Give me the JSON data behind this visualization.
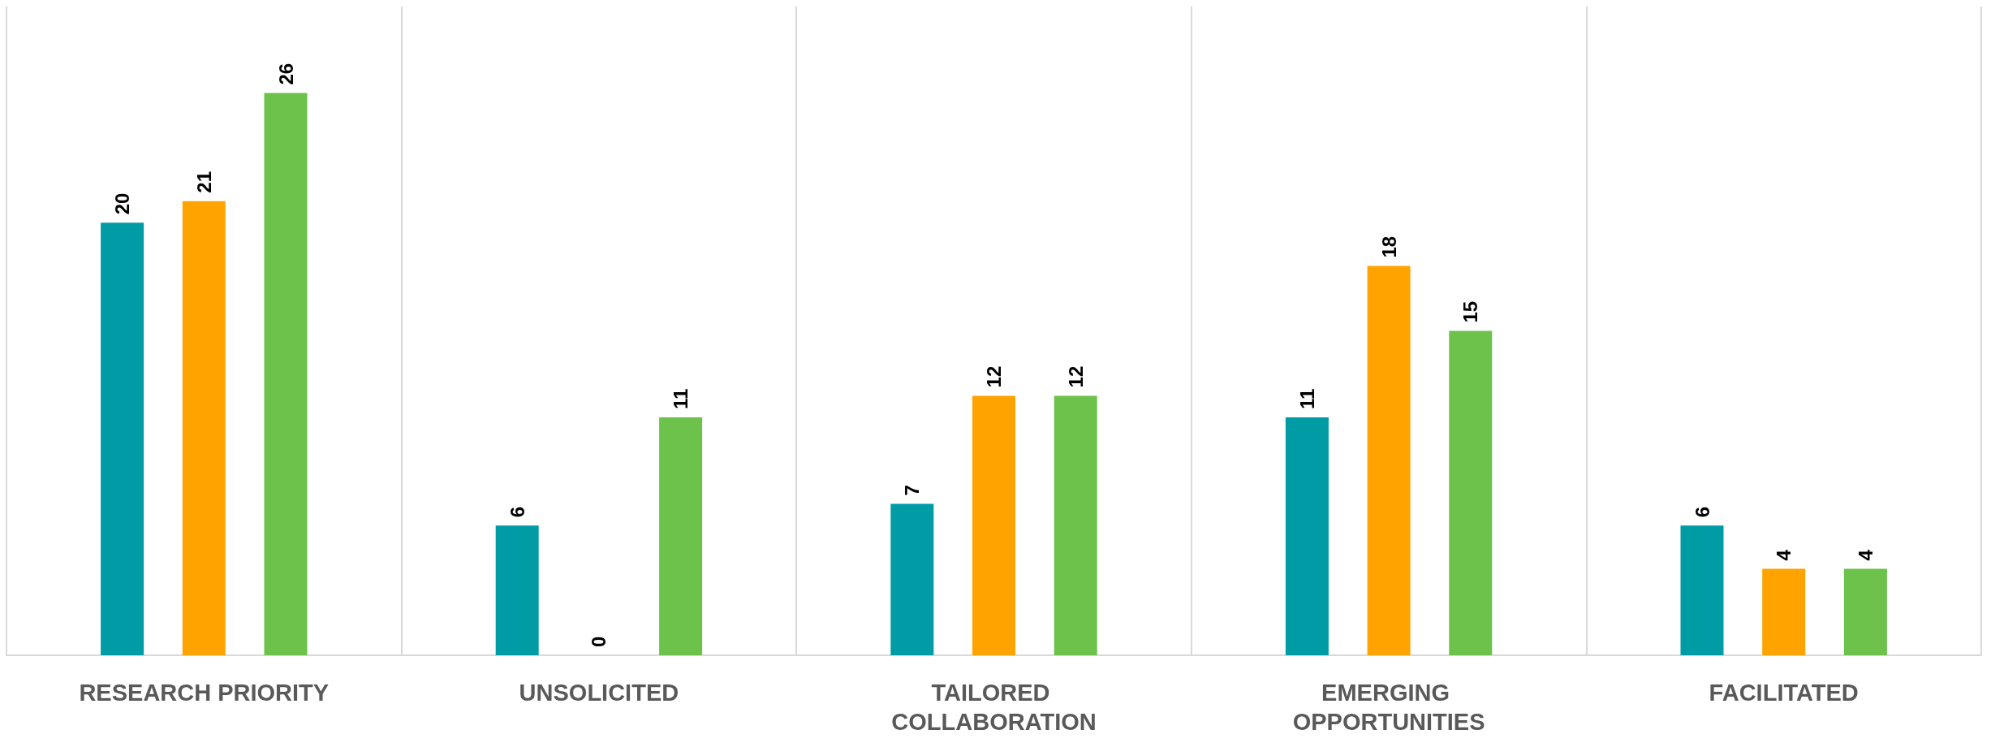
{
  "chart_data": {
    "type": "bar",
    "categories": [
      "RESEARCH PRIORITY",
      "UNSOLICITED",
      "TAILORED COLLABORATION",
      "EMERGING OPPORTUNITIES",
      "FACILITATED"
    ],
    "series": [
      {
        "color": "#009ca6",
        "values": [
          20,
          6,
          7,
          11,
          6
        ]
      },
      {
        "color": "#ffa300",
        "values": [
          21,
          0,
          12,
          18,
          4
        ]
      },
      {
        "color": "#6cc24a",
        "values": [
          26,
          11,
          12,
          15,
          4
        ]
      }
    ],
    "data_labels": true,
    "grid": "x"
  }
}
